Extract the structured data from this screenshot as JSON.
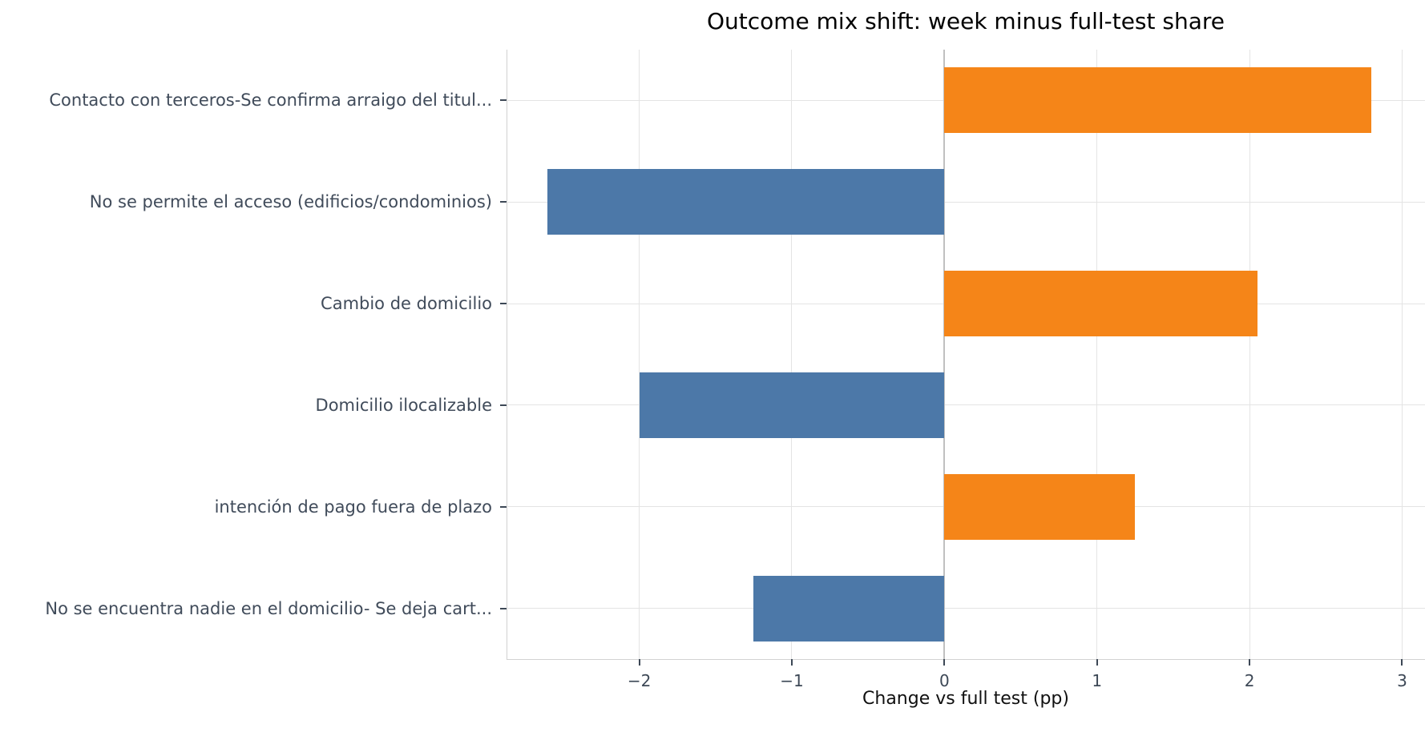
{
  "chart_data": {
    "type": "bar",
    "orientation": "horizontal",
    "title": "Outcome mix shift: week minus full-test share",
    "xlabel": "Change vs full test (pp)",
    "ylabel": "",
    "categories": [
      "Contacto con terceros-Se confirma arraigo del titul...",
      "No se permite el acceso (edificios/condominios)",
      "Cambio de domicilio",
      "Domicilio ilocalizable",
      "intención de pago fuera de plazo",
      "No se encuentra nadie en el domicilio- Se deja cart..."
    ],
    "values": [
      2.8,
      -2.6,
      2.05,
      -2.0,
      1.25,
      -1.25
    ],
    "xticks": [
      -2,
      -1,
      0,
      1,
      2,
      3
    ],
    "xlim": [
      -2.87,
      3.15
    ],
    "grid": true,
    "legend": "none",
    "colors": {
      "positive": "#f58518",
      "negative": "#4c78a8",
      "gridline": "#e4e4e4",
      "zero_line": "#c0c0c0",
      "axis_line": "#d2d2d2",
      "tick_text": "#3d4856",
      "category_text": "#404b5a",
      "title_text": "#000000"
    }
  }
}
